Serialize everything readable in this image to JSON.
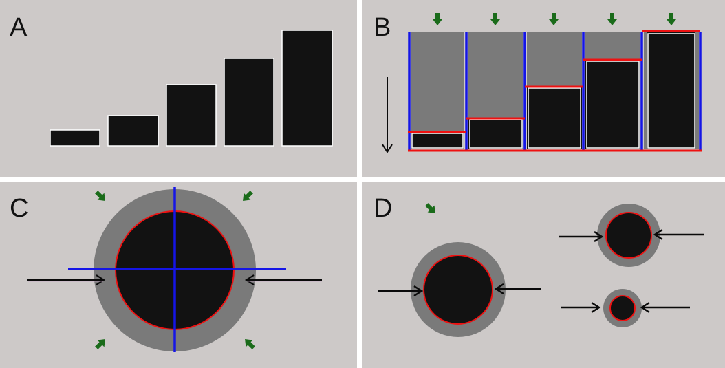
{
  "colors": {
    "background": "#cdc9c8",
    "dark": "#121212",
    "gray": "#7a7a7a",
    "red": "#ee1111",
    "blue": "#1515e6",
    "green": "#1a6b1a",
    "arrow": "#0a0a0a"
  },
  "panels": {
    "a": {
      "label": "A"
    },
    "b": {
      "label": "B"
    },
    "c": {
      "label": "C"
    },
    "d": {
      "label": "D"
    }
  },
  "icons": [
    "green-arrow-icon",
    "black-arrow-icon"
  ]
}
